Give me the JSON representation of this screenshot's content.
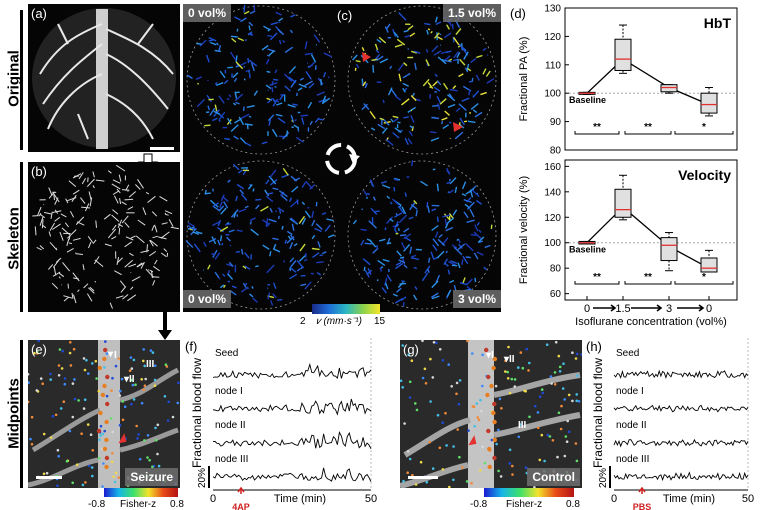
{
  "row_labels": {
    "original": "Original",
    "skeleton": "Skeleton",
    "midpoints": "Midpoints"
  },
  "panel_labels": {
    "a": "(a)",
    "b": "(b)",
    "c": "(c)",
    "d": "(d)",
    "e": "(e)",
    "f": "(f)",
    "g": "(g)",
    "h": "(h)"
  },
  "panel_c": {
    "tags": {
      "tl": "0 vol%",
      "tr": "1.5 vol%",
      "bl": "0 vol%",
      "br": "3 vol%"
    },
    "colorbar": {
      "min": "2",
      "unit": "𝑣 (mm·s⁻¹)",
      "max": "15"
    }
  },
  "panel_d": {
    "x_label": "Isoflurane concentration (vol%)",
    "x_ticks": [
      "0",
      "1.5",
      "3",
      "0"
    ],
    "top": {
      "title": "HbT",
      "ylabel": "Fractional PA (%)",
      "yticks": [
        "130",
        "120",
        "110",
        "100",
        "90",
        "80"
      ],
      "baseline_label": "Baseline",
      "sig": [
        "**",
        "**",
        "*"
      ]
    },
    "bottom": {
      "title": "Velocity",
      "ylabel": "Fractional velocity (%)",
      "yticks": [
        "160",
        "140",
        "120",
        "100",
        "80",
        "60"
      ],
      "baseline_label": "Baseline",
      "sig": [
        "**",
        "**",
        "*"
      ]
    }
  },
  "chart_data": [
    {
      "type": "box",
      "title": "HbT",
      "ylabel": "Fractional PA (%)",
      "xlabel": "Isoflurane concentration (vol%)",
      "categories": [
        "0",
        "1.5",
        "3",
        "0"
      ],
      "ylim": [
        80,
        130
      ],
      "boxes": [
        {
          "min": 99.6,
          "q1": 99.6,
          "median": 100,
          "q3": 100.3,
          "max": 100.3
        },
        {
          "min": 107,
          "q1": 108,
          "median": 112,
          "q3": 119,
          "max": 124
        },
        {
          "min": 100,
          "q1": 100.5,
          "median": 102,
          "q3": 103,
          "max": 103
        },
        {
          "min": 92,
          "q1": 93,
          "median": 96,
          "q3": 100,
          "max": 102
        }
      ],
      "line": [
        100,
        112,
        102,
        96
      ]
    },
    {
      "type": "box",
      "title": "Velocity",
      "ylabel": "Fractional velocity (%)",
      "xlabel": "Isoflurane concentration (vol%)",
      "categories": [
        "0",
        "1.5",
        "3",
        "0"
      ],
      "ylim": [
        55,
        165
      ],
      "boxes": [
        {
          "min": 99,
          "q1": 99,
          "median": 100,
          "q3": 101,
          "max": 101
        },
        {
          "min": 118,
          "q1": 120,
          "median": 126,
          "q3": 142,
          "max": 153
        },
        {
          "min": 78,
          "q1": 86,
          "median": 98,
          "q3": 104,
          "max": 108
        },
        {
          "min": 77,
          "q1": 77,
          "median": 80,
          "q3": 88,
          "max": 94
        }
      ],
      "line": [
        100,
        128,
        97,
        80
      ]
    }
  ],
  "panel_e": {
    "tag": "Seizure",
    "nodes": [
      "I",
      "II",
      "III"
    ]
  },
  "panel_g": {
    "tag": "Control",
    "nodes": [
      "I",
      "II",
      "III"
    ]
  },
  "fisher_bar": {
    "min": "-0.8",
    "label": "Fisher-z",
    "max": "0.8"
  },
  "panel_f": {
    "ylabel": "Fractional blood flow",
    "scale": "20%",
    "traces": [
      "Seed",
      "node I",
      "node II",
      "node III"
    ],
    "x_ticks": [
      "0",
      "50"
    ],
    "xlabel": "Time (min)",
    "marker": "4AP"
  },
  "panel_h": {
    "ylabel": "Fractional blood flow",
    "scale": "20%",
    "traces": [
      "Seed",
      "node I",
      "node II",
      "node III"
    ],
    "x_ticks": [
      "0",
      "50"
    ],
    "xlabel": "Time (min)",
    "marker": "PBS"
  }
}
